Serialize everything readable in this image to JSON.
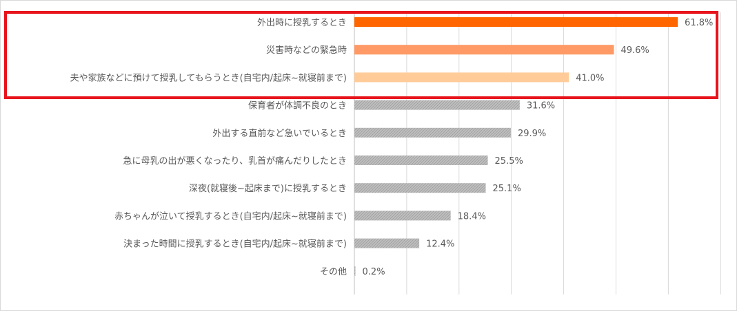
{
  "chart_data": {
    "type": "bar",
    "orientation": "horizontal",
    "categories": [
      "外出時に授乳するとき",
      "災害時などの緊急時",
      "夫や家族などに預けて授乳してもらうとき(自宅内/起床~就寝前まで)",
      "保育者が体調不良のとき",
      "外出する直前など急いでいるとき",
      "急に母乳の出が悪くなったり、乳首が痛んだりしたとき",
      "深夜(就寝後~起床まで)に授乳するとき",
      "赤ちゃんが泣いて授乳するとき(自宅内/起床~就寝前まで)",
      "決まった時間に授乳するとき(自宅内/起床~就寝前まで)",
      "その他"
    ],
    "values": [
      61.8,
      49.6,
      41.0,
      31.6,
      29.9,
      25.5,
      25.1,
      18.4,
      12.4,
      0.2
    ],
    "labels": [
      "61.8%",
      "49.6%",
      "41.0%",
      "31.6%",
      "29.9%",
      "25.5%",
      "25.1%",
      "18.4%",
      "12.4%",
      "0.2%"
    ],
    "colors": [
      "#ff6600",
      "#ff9966",
      "#ffcc99",
      "#bfbfbf",
      "#bfbfbf",
      "#bfbfbf",
      "#bfbfbf",
      "#bfbfbf",
      "#bfbfbf",
      "#bfbfbf"
    ],
    "highlighted": [
      0,
      1,
      2
    ],
    "highlight_color": "#e8141c",
    "xlim": [
      0,
      70
    ],
    "grid": true,
    "gridline_step": 10,
    "title": "",
    "xlabel": "",
    "ylabel": ""
  }
}
